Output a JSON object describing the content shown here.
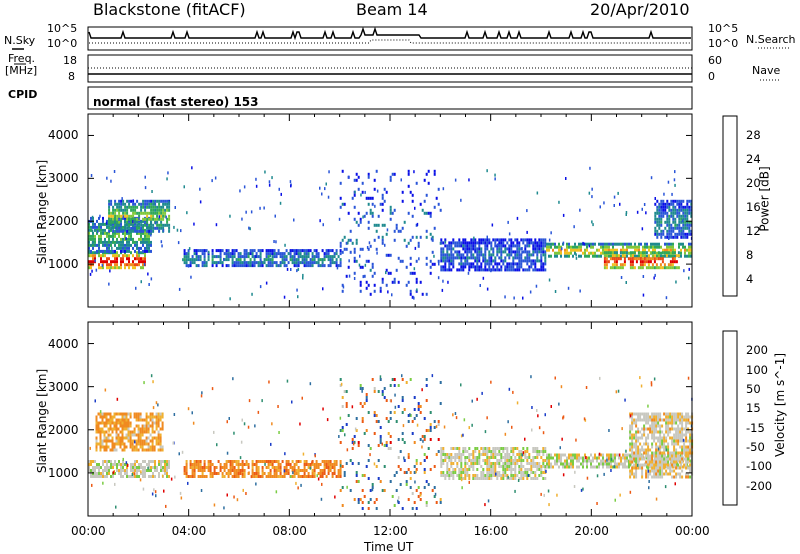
{
  "header": {
    "station": "Blackstone (fitACF)",
    "beam": "Beam 14",
    "date": "20/Apr/2010"
  },
  "top_panels": {
    "nsky_label": "N.Sky",
    "nsearch_label": "N.Search",
    "noise_ticks": [
      "10^5",
      "10^0"
    ],
    "noise_ticks_right": [
      "10^5",
      "10^0"
    ],
    "freq_label": "Freq.",
    "freq_unit": "[MHz]",
    "freq_ticks": [
      "18",
      "8"
    ],
    "nave_label": "Nave",
    "nave_ticks": [
      "60",
      "0"
    ],
    "cpid_label": "CPID",
    "cpid_value": "normal (fast stereo) 153"
  },
  "colors": {
    "axis": "#000000",
    "no_data": "#ffffff",
    "ground_scatter": "#c8c8c0"
  },
  "chart_data": [
    {
      "type": "heatmap",
      "panel": "power",
      "title": "",
      "xlabel": "",
      "ylabel": "Slant Range [km]",
      "xlim": [
        "00:00",
        "24:00"
      ],
      "ylim": [
        0,
        4500
      ],
      "yticks": [
        "1000",
        "2000",
        "3000",
        "4000"
      ],
      "colorbar": {
        "label": "Power [dB]",
        "ticks": [
          "4",
          "8",
          "12",
          "16",
          "20",
          "24",
          "28"
        ],
        "range": [
          0,
          30
        ],
        "colors": [
          "#0a10e6",
          "#2a55d8",
          "#1f8a8f",
          "#2fa85a",
          "#80c83a",
          "#f0c020",
          "#f08a20",
          "#ec4a14",
          "#e00000"
        ]
      },
      "echo_bands": [
        {
          "t": [
            0.0,
            2.3
          ],
          "r": [
            900,
            1300
          ],
          "level": 28
        },
        {
          "t": [
            0.0,
            2.5
          ],
          "r": [
            1300,
            2100
          ],
          "level": 12
        },
        {
          "t": [
            0.8,
            3.2
          ],
          "r": [
            1800,
            2500
          ],
          "level": 14
        },
        {
          "t": [
            3.8,
            10.0
          ],
          "r": [
            950,
            1350
          ],
          "level": 8
        },
        {
          "t": [
            10.0,
            14.0
          ],
          "r": [
            200,
            3200
          ],
          "level": 6
        },
        {
          "t": [
            14.0,
            18.2
          ],
          "r": [
            900,
            1600
          ],
          "level": 6
        },
        {
          "t": [
            18.2,
            24.0
          ],
          "r": [
            1200,
            1500
          ],
          "level": 18
        },
        {
          "t": [
            20.5,
            23.5
          ],
          "r": [
            900,
            1300
          ],
          "level": 26
        },
        {
          "t": [
            22.5,
            24.0
          ],
          "r": [
            1600,
            2500
          ],
          "level": 8
        }
      ]
    },
    {
      "type": "heatmap",
      "panel": "velocity",
      "title": "",
      "xlabel": "Time UT",
      "ylabel": "Slant Range [km]",
      "xlim": [
        "00:00",
        "24:00"
      ],
      "ylim": [
        0,
        4500
      ],
      "xticks": [
        "00:00",
        "04:00",
        "08:00",
        "12:00",
        "16:00",
        "20:00",
        "00:00"
      ],
      "yticks": [
        "1000",
        "2000",
        "3000",
        "4000"
      ],
      "colorbar": {
        "label": "Velocity [m s^-1]",
        "ticks": [
          "200",
          "100",
          "50",
          "15",
          "-15",
          "-50",
          "-100",
          "-200"
        ],
        "colors": [
          "#1a3cc8",
          "#2e6ea0",
          "#2e8e70",
          "#7acc44",
          "#c8c8c0",
          "#f0b030",
          "#f08a20",
          "#ec5a14",
          "#e00000"
        ]
      },
      "echo_bands": [
        {
          "t": [
            0.0,
            3.2
          ],
          "r": [
            900,
            1300
          ],
          "v": 0
        },
        {
          "t": [
            0.3,
            3.0
          ],
          "r": [
            1500,
            2400
          ],
          "v": -50
        },
        {
          "t": [
            3.8,
            10.0
          ],
          "r": [
            950,
            1300
          ],
          "v": -80
        },
        {
          "t": [
            10.0,
            14.0
          ],
          "r": [
            200,
            3200
          ],
          "v": 30
        },
        {
          "t": [
            14.0,
            18.2
          ],
          "r": [
            900,
            1600
          ],
          "v": 0
        },
        {
          "t": [
            18.2,
            24.0
          ],
          "r": [
            1150,
            1450
          ],
          "v": 0
        },
        {
          "t": [
            21.5,
            24.0
          ],
          "r": [
            900,
            2400
          ],
          "v": -20
        }
      ]
    }
  ]
}
